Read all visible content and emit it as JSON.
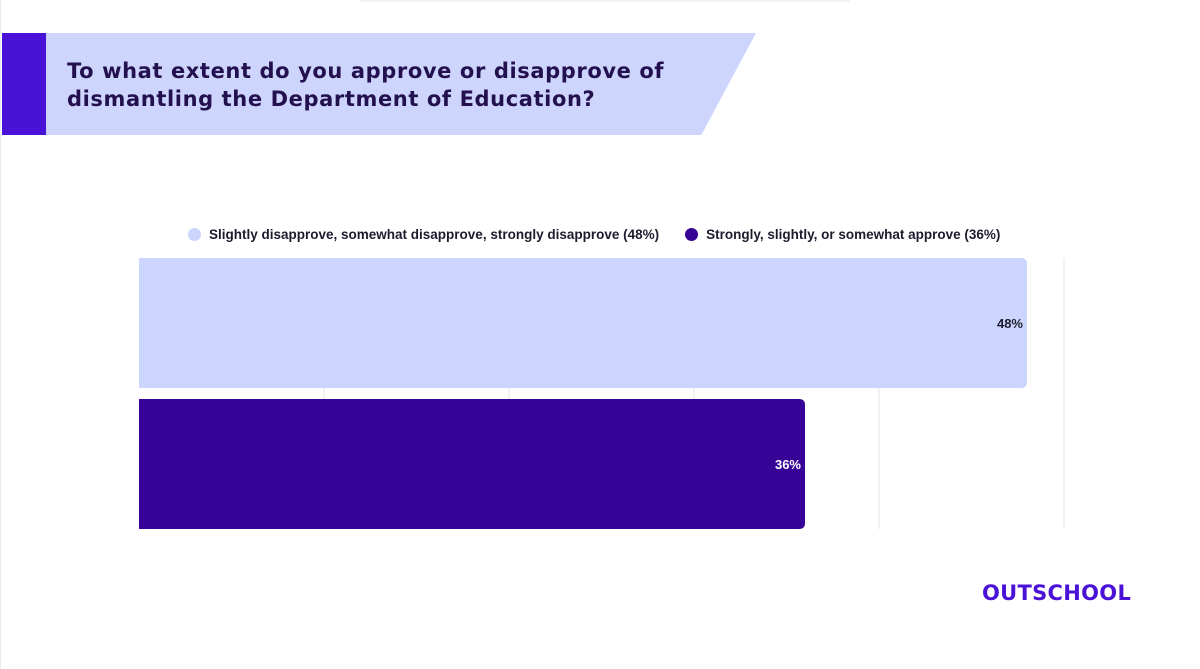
{
  "title": "To what extent do you approve or disapprove of dismantling the Department of Education?",
  "brand": {
    "logo_text": "OUTSCHOOL",
    "accent_color": "#4a11d6",
    "banner_color": "#cdd5fd"
  },
  "chart_data": {
    "type": "bar",
    "orientation": "horizontal",
    "title": "To what extent do you approve or disapprove of dismantling the Department of Education?",
    "xlabel": "",
    "ylabel": "",
    "xlim": [
      0,
      50
    ],
    "grid": true,
    "legend_position": "top",
    "series": [
      {
        "name": "Slightly disapprove, somewhat disapprove, strongly disapprove (48%)",
        "value": 48,
        "data_label": "48%",
        "color": "#ccd5fd",
        "label_color": "#1e1b2e"
      },
      {
        "name": "Strongly, slightly, or somewhat approve (36%)",
        "value": 36,
        "data_label": "36%",
        "color": "#370497",
        "label_color": "#ffffff"
      }
    ]
  }
}
